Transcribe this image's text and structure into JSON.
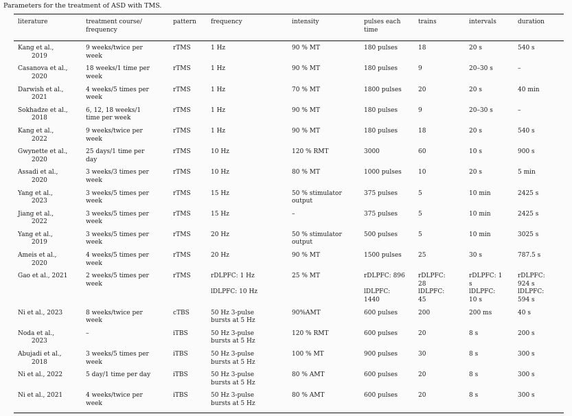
{
  "title": "Parameters for the treatment of ASD with TMS.",
  "table": {
    "columns": [
      "literature",
      "treatment course/\nfrequency",
      "pattern",
      "frequency",
      "intensity",
      "pulses each\ntime",
      "trains",
      "intervals",
      "duration"
    ],
    "rows": [
      [
        "Kang et al.,\n2019",
        "9 weeks/twice per\nweek",
        "rTMS",
        "1 Hz",
        "90 % MT",
        "180 pulses",
        "18",
        "20 s",
        "540 s"
      ],
      [
        "Casanova et al.,\n2020",
        "18 weeks/1 time per\nweek",
        "rTMS",
        "1 Hz",
        "90 % MT",
        "180 pulses",
        "9",
        "20–30 s",
        "–"
      ],
      [
        "Darwish et al.,\n2021",
        "4 weeks/5 times per\nweek",
        "rTMS",
        "1 Hz",
        "70 % MT",
        "1800 pulses",
        "20",
        "20 s",
        "40 min"
      ],
      [
        "Sokhadze et al.,\n2018",
        "6, 12, 18 weeks/1\ntime per week",
        "rTMS",
        "1 Hz",
        "90 % MT",
        "180 pulses",
        "9",
        "20–30 s",
        "–"
      ],
      [
        "Kang et al.,\n2022",
        "9 weeks/twice per\nweek",
        "rTMS",
        "1 Hz",
        "90 % MT",
        "180 pulses",
        "18",
        "20 s",
        "540 s"
      ],
      [
        "Gwynette et al.,\n2020",
        "25 days/1 time per\nday",
        "rTMS",
        "10 Hz",
        "120 % RMT",
        "3000",
        "60",
        "10 s",
        "900 s"
      ],
      [
        "Assadi et al.,\n2020",
        "3 weeks/3 times per\nweek",
        "rTMS",
        "10 Hz",
        "80 % MT",
        "1000 pulses",
        "10",
        "20 s",
        "5 min"
      ],
      [
        "Yang et al.,\n2023",
        "3 weeks/5 times per\nweek",
        "rTMS",
        "15 Hz",
        "50 % stimulator\noutput",
        "375 pulses",
        "5",
        "10 min",
        "2425 s"
      ],
      [
        "Jiang et al.,\n2022",
        "3 weeks/5 times per\nweek",
        "rTMS",
        "15 Hz",
        "–",
        "375 pulses",
        "5",
        "10 min",
        "2425 s"
      ],
      [
        "Yang et al.,\n2019",
        "3 weeks/5 times per\nweek",
        "rTMS",
        "20 Hz",
        "50 % stimulator\noutput",
        "500 pulses",
        "5",
        "10 min",
        "3025 s"
      ],
      [
        "Ameis et al.,\n2020",
        "4 weeks/5 times per\nweek",
        "rTMS",
        "20 Hz",
        "90 % MT",
        "1500 pulses",
        "25",
        "30 s",
        "787.5 s"
      ],
      [
        "Gao et al., 2021",
        "2 weeks/5 times per\nweek",
        "rTMS",
        "rDLPFC: 1 Hz\n\nlDLPFC: 10 Hz",
        "25 % MT",
        "rDLPFC: 896\n\nlDLPFC:\n1440",
        "rDLPFC:\n28\nlDLPFC:\n45",
        "rDLPFC: 1\ns\nlDLPFC:\n10 s",
        "rDLPFC:\n924 s\nlDLPFC:\n594 s"
      ],
      [
        "Ni et al., 2023",
        "8 weeks/twice per\nweek",
        "cTBS",
        "50 Hz 3-pulse\nbursts at 5 Hz",
        "90%AMT",
        "600 pulses",
        "200",
        "200 ms",
        "40 s"
      ],
      [
        "Noda et al.,\n2023",
        "–",
        "iTBS",
        "50 Hz 3-pulse\nbursts at 5 Hz",
        "120 % RMT",
        "600 pulses",
        "20",
        "8 s",
        "200 s"
      ],
      [
        "Abujadi et al.,\n2018",
        "3 weeks/5 times per\nweek",
        "iTBS",
        "50 Hz 3-pulse\nbursts at 5 Hz",
        "100 % MT",
        "900 pulses",
        "30",
        "8 s",
        "300 s"
      ],
      [
        "Ni et al., 2022",
        "5 day/1 time per day",
        "iTBS",
        "50 Hz 3-pulse\nbursts at 5 Hz",
        "80 % AMT",
        "600 pulses",
        "20",
        "8 s",
        "300 s"
      ],
      [
        "Ni et al., 2021",
        "4 weeks/twice per\nweek",
        "iTBS",
        "50 Hz 3-pulse\nbursts at 5 Hz",
        "80 % AMT",
        "600 pulses",
        "20",
        "8 s",
        "300 s"
      ]
    ]
  }
}
